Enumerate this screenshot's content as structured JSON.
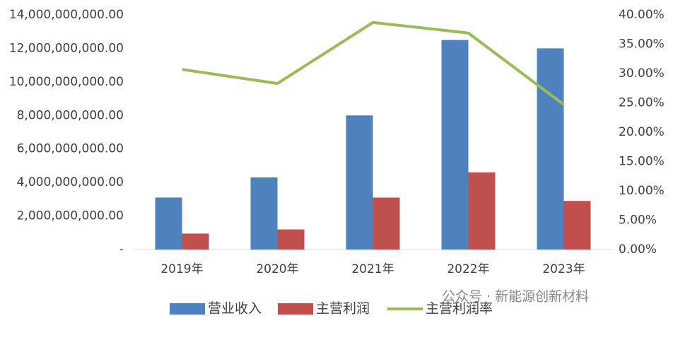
{
  "chart_data": {
    "type": "bar",
    "categories": [
      "2019年",
      "2020年",
      "2021年",
      "2022年",
      "2023年"
    ],
    "series": [
      {
        "name": "营业收入",
        "color": "#4f81bd",
        "values": [
          3100000000,
          4300000000,
          8000000000,
          12500000000,
          12000000000
        ]
      },
      {
        "name": "主营利润",
        "color": "#c0504d",
        "values": [
          950000000,
          1200000000,
          3100000000,
          4600000000,
          2900000000
        ]
      },
      {
        "name": "主营利润率",
        "color": "#9bbb59",
        "type": "line",
        "axis": "y2",
        "values": [
          30.7,
          28.3,
          38.7,
          36.9,
          24.7
        ]
      }
    ],
    "ylim": [
      0,
      14000000000
    ],
    "yticks": [
      {
        "value": 0,
        "label": "-"
      },
      {
        "value": 2000000000,
        "label": "2,000,000,000.00"
      },
      {
        "value": 4000000000,
        "label": "4,000,000,000.00"
      },
      {
        "value": 6000000000,
        "label": "6,000,000,000.00"
      },
      {
        "value": 8000000000,
        "label": "8,000,000,000.00"
      },
      {
        "value": 10000000000,
        "label": "10,000,000,000.00"
      },
      {
        "value": 12000000000,
        "label": "12,000,000,000.00"
      },
      {
        "value": 14000000000,
        "label": "14,000,000,000.00"
      }
    ],
    "y2lim": [
      0,
      40
    ],
    "y2ticks": [
      {
        "value": 0,
        "label": "0.00%"
      },
      {
        "value": 5,
        "label": "5.00%"
      },
      {
        "value": 10,
        "label": "10.00%"
      },
      {
        "value": 15,
        "label": "15.00%"
      },
      {
        "value": 20,
        "label": "20.00%"
      },
      {
        "value": 25,
        "label": "25.00%"
      },
      {
        "value": 30,
        "label": "30.00%"
      },
      {
        "value": 35,
        "label": "35.00%"
      },
      {
        "value": 40,
        "label": "40.00%"
      }
    ],
    "grid": false,
    "legend": "bottom",
    "annotation": "公众号 · 新能源创新材料"
  }
}
